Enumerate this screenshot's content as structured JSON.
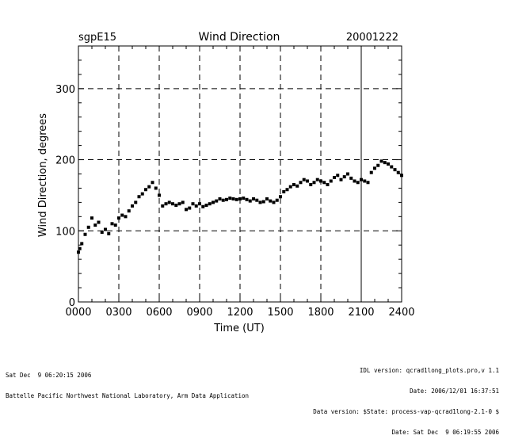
{
  "chart_data": {
    "type": "scatter",
    "title": "Wind Direction",
    "site_label": "sgpE15",
    "date_label": "20001222",
    "xlabel": "Time (UT)",
    "ylabel": "Wind Direction, degrees",
    "xlim": [
      0,
      24
    ],
    "ylim": [
      0,
      360
    ],
    "x_ticks": [
      0,
      3,
      6,
      9,
      12,
      15,
      18,
      21,
      24
    ],
    "x_tick_labels": [
      "0000",
      "0300",
      "0600",
      "0900",
      "1200",
      "1500",
      "1800",
      "2100",
      "2400"
    ],
    "y_ticks": [
      0,
      100,
      200,
      300
    ],
    "y_tick_labels": [
      "0",
      "100",
      "200",
      "300"
    ],
    "vertical_gridlines_hours": [
      3,
      6,
      9,
      12,
      15,
      18,
      21
    ],
    "solid_vertical_line_hour": 21,
    "horizontal_gridlines": [
      100,
      200,
      300
    ],
    "grid": "dashed",
    "series": [
      {
        "name": "wind_direction",
        "color": "#000000",
        "x": [
          0.0,
          0.1,
          0.25,
          0.5,
          0.75,
          1.0,
          1.25,
          1.5,
          1.75,
          2.0,
          2.25,
          2.5,
          2.75,
          3.0,
          3.25,
          3.5,
          3.75,
          4.0,
          4.25,
          4.5,
          4.75,
          5.0,
          5.25,
          5.5,
          5.75,
          6.0,
          6.25,
          6.5,
          6.75,
          7.0,
          7.25,
          7.5,
          7.75,
          8.0,
          8.25,
          8.5,
          8.75,
          9.0,
          9.25,
          9.5,
          9.75,
          10.0,
          10.25,
          10.5,
          10.75,
          11.0,
          11.25,
          11.5,
          11.75,
          12.0,
          12.25,
          12.5,
          12.75,
          13.0,
          13.25,
          13.5,
          13.75,
          14.0,
          14.25,
          14.5,
          14.75,
          15.0,
          15.25,
          15.5,
          15.75,
          16.0,
          16.25,
          16.5,
          16.75,
          17.0,
          17.25,
          17.5,
          17.75,
          18.0,
          18.25,
          18.5,
          18.75,
          19.0,
          19.25,
          19.5,
          19.75,
          20.0,
          20.25,
          20.5,
          20.75,
          21.0,
          21.25,
          21.5,
          21.75,
          22.0,
          22.25,
          22.5,
          22.75,
          23.0,
          23.25,
          23.5,
          23.75,
          24.0
        ],
        "y": [
          70,
          75,
          82,
          95,
          105,
          118,
          108,
          112,
          98,
          102,
          96,
          110,
          108,
          118,
          122,
          120,
          128,
          135,
          140,
          148,
          152,
          158,
          162,
          168,
          160,
          150,
          135,
          138,
          140,
          138,
          136,
          138,
          140,
          130,
          132,
          138,
          135,
          138,
          134,
          136,
          138,
          140,
          142,
          145,
          143,
          144,
          146,
          145,
          144,
          145,
          146,
          144,
          142,
          145,
          143,
          140,
          141,
          145,
          142,
          140,
          143,
          148,
          155,
          158,
          162,
          165,
          163,
          168,
          172,
          170,
          165,
          168,
          172,
          170,
          168,
          165,
          170,
          175,
          178,
          172,
          176,
          180,
          174,
          170,
          168,
          172,
          170,
          168,
          182,
          188,
          192,
          198,
          196,
          194,
          190,
          186,
          182,
          178
        ]
      }
    ]
  },
  "footer": {
    "left_line1": "Sat Dec  9 06:20:15 2006",
    "left_line2": "Battelle Pacific Northwest National Laboratory, Arm Data Application",
    "right_line1": "IDL version: qcrad1long_plots.pro,v 1.1",
    "right_line2": "Date: 2006/12/01 16:37:51",
    "right_line3": "Data version: $State: process-vap-qcrad1long-2.1-0 $",
    "right_line4": "Date: Sat Dec  9 06:19:55 2006"
  }
}
